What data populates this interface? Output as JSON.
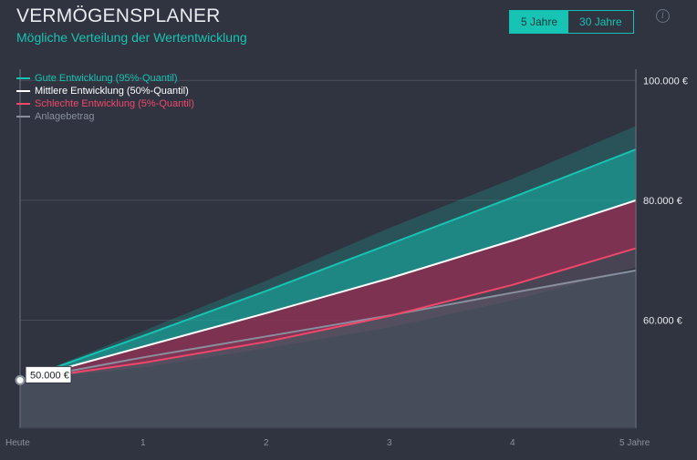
{
  "header": {
    "title": "VERMÖGENSPLANER",
    "subtitle": "Mögliche Verteilung der Wertentwicklung"
  },
  "toggle": {
    "options": [
      {
        "label": "5 Jahre",
        "active": true
      },
      {
        "label": "30 Jahre",
        "active": false
      }
    ]
  },
  "info_label": "i",
  "colors": {
    "good": "#17c3b2",
    "median": "#ffffff",
    "bad": "#f0476b",
    "invested": "#8a8fa0",
    "background": "#2f3440"
  },
  "chart_data": {
    "type": "area",
    "x": [
      0,
      1,
      2,
      3,
      4,
      5
    ],
    "x_tick_labels": [
      "Heute",
      "1",
      "2",
      "3",
      "4",
      "5 Jahre"
    ],
    "ylim": [
      42000,
      104000
    ],
    "y_ticks": [
      60000,
      80000,
      100000
    ],
    "y_tick_labels": [
      "60.000 €",
      "80.000 €",
      "100.000 €"
    ],
    "grid": true,
    "legend_placement": "top-left",
    "series": [
      {
        "name": "Gute Entwicklung (95%-Quantil)",
        "key": "good",
        "values": [
          50000,
          57400,
          64900,
          72700,
          80500,
          88500
        ]
      },
      {
        "name": "Mittlere Entwicklung (50%-Quantil)",
        "key": "median",
        "values": [
          50000,
          55600,
          61200,
          67000,
          73300,
          80000
        ]
      },
      {
        "name": "Schlechte Entwicklung (5%-Quantil)",
        "key": "bad",
        "values": [
          50000,
          52900,
          56400,
          60700,
          65900,
          72000
        ]
      },
      {
        "name": "Anlagebetrag",
        "key": "invested",
        "values": [
          50000,
          53800,
          57300,
          60800,
          64600,
          68300
        ]
      }
    ],
    "outer_band": {
      "upper": [
        50000,
        58200,
        66600,
        75400,
        83600,
        92400
      ],
      "lower": [
        50000,
        52100,
        55300,
        58800,
        63300,
        68800
      ]
    },
    "start_label": "50.000 €"
  }
}
